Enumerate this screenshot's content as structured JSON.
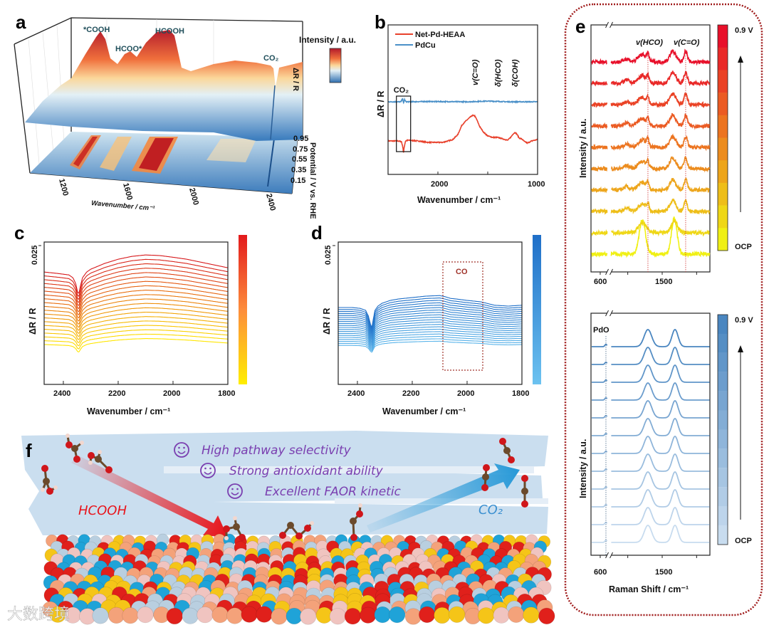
{
  "panel_labels": {
    "a": "a",
    "b": "b",
    "c": "c",
    "d": "d",
    "e": "e",
    "f": "f"
  },
  "panel_f": {
    "benefits": [
      "High pathway selectivity",
      "Strong antioxidant ability",
      "Excellent FAOR kinetic"
    ],
    "reactant_label": "HCOOH",
    "product_label": "CO₂",
    "icon": "smiley-icon",
    "atom_palette": [
      "#e0201b",
      "#b9cfe0",
      "#1fa3d8",
      "#f5c518",
      "#f4a27a",
      "#f0c4c0"
    ],
    "molecule_colors": {
      "C": "#6b4a2b",
      "O": "#d0161b",
      "H": "#f2d7cf"
    },
    "arrow_colors": {
      "reactant": "#e8141b",
      "product": "#2a9ad8"
    }
  },
  "watermark": "大数跨境",
  "chart_data": [
    {
      "panel": "a",
      "type": "surface",
      "colorbar_label": "Intensity / a.u.",
      "zlabel": "ΔR / R",
      "xlabel": "Wavenumber / cm⁻¹",
      "xticks": [
        1200,
        1600,
        2000,
        2400
      ],
      "ylabel": "Potential / V vs. RHE",
      "yticks": [
        "0.95",
        "0.75",
        "0.55",
        "0.35",
        "0.15"
      ],
      "annotations": [
        "*COOH",
        "HCOO*",
        "HCOOH",
        "CO₂"
      ],
      "colormap": [
        "#2e6fb0",
        "#e3f0f6",
        "#fbd79a",
        "#f0703c",
        "#b2182b"
      ]
    },
    {
      "panel": "b",
      "type": "line",
      "xlabel": "Wavenumber / cm⁻¹",
      "ylabel": "ΔR / R",
      "xlim": [
        2500,
        1000
      ],
      "ylim": [
        -2.35,
        8.15
      ],
      "xticks": [
        2000,
        1000
      ],
      "annotations": [
        {
          "text": "CO₂",
          "x": 2345
        },
        {
          "text": "v(C=O)",
          "x": 1630
        },
        {
          "text": "δ(HCO)",
          "x": 1400
        },
        {
          "text": "δ(COH)",
          "x": 1230
        }
      ],
      "series": [
        {
          "name": "Net-Pd-HEAA",
          "color": "#e8412c",
          "offset": 0,
          "x": [
            2500,
            2400,
            2365,
            2350,
            2345,
            2340,
            2325,
            2300,
            2200,
            2100,
            1950,
            1850,
            1800,
            1760,
            1720,
            1680,
            1650,
            1630,
            1610,
            1580,
            1540,
            1500,
            1450,
            1400,
            1350,
            1300,
            1270,
            1245,
            1225,
            1205,
            1185,
            1160,
            1130,
            1100,
            1060,
            1030,
            1000
          ],
          "y": [
            0,
            0,
            -0.05,
            -0.5,
            -0.9,
            -0.5,
            0,
            0.05,
            0,
            -0.1,
            -0.1,
            0.1,
            0.45,
            1.1,
            1.4,
            1.65,
            1.8,
            1.75,
            1.5,
            1.0,
            0.6,
            0.35,
            0.25,
            0.25,
            0.15,
            0.05,
            0.25,
            0.5,
            0.6,
            0.45,
            0.2,
            0.15,
            -0.05,
            -0.15,
            0,
            0.05,
            0.1
          ]
        },
        {
          "name": "PdCu",
          "color": "#4a90c8",
          "offset": 2.75,
          "x": [
            2500,
            2370,
            2355,
            2345,
            2335,
            2320,
            2100,
            1700,
            1500,
            1300,
            1000
          ],
          "y": [
            0,
            0,
            0.25,
            -0.1,
            0.15,
            0,
            0.02,
            0,
            0.05,
            0,
            0
          ]
        }
      ]
    },
    {
      "panel": "c",
      "type": "line",
      "xlabel": "Wavenumber / cm⁻¹",
      "ylabel": "ΔR / R",
      "scale_bar": "0.025",
      "xlim": [
        2470,
        1800
      ],
      "ylim": [
        0,
        0.05
      ],
      "xticks": [
        2400,
        2200,
        2000,
        1800
      ],
      "n_spectra": 20,
      "offset_start": 0.014,
      "offset_step": 0.00134,
      "color_low": "#ffe600",
      "color_high": "#d7191c",
      "shape_x": [
        2470,
        2420,
        2380,
        2365,
        2355,
        2348,
        2343,
        2338,
        2330,
        2315,
        2300,
        2250,
        2200,
        2150,
        2100,
        2050,
        2000,
        1950,
        1900,
        1850,
        1800
      ],
      "shape_y": [
        0,
        -0.0005,
        -0.001,
        -0.002,
        -0.004,
        -0.007,
        -0.0075,
        -0.005,
        -0.002,
        0,
        0.001,
        0.003,
        0.0045,
        0.0055,
        0.006,
        0.0058,
        0.0052,
        0.0045,
        0.0035,
        0.0025,
        0.0015
      ]
    },
    {
      "panel": "d",
      "type": "line",
      "xlabel": "Wavenumber / cm⁻¹",
      "ylabel": "ΔR / R",
      "scale_bar": "0.025",
      "xlim": [
        2470,
        1800
      ],
      "ylim": [
        0,
        0.05
      ],
      "xticks": [
        2400,
        2200,
        2000,
        1800
      ],
      "n_spectra": 20,
      "offset_start": 0.0137,
      "offset_step": 0.0007,
      "color_low": "#5ab4ea",
      "color_high": "#1f6fc8",
      "annotation": {
        "text": "CO",
        "x_range": [
          2090,
          1950
        ]
      },
      "shape_x": [
        2470,
        2420,
        2390,
        2370,
        2360,
        2352,
        2347,
        2342,
        2336,
        2325,
        2310,
        2280,
        2250,
        2200,
        2150,
        2100,
        2080,
        2060,
        2040,
        2000,
        1950,
        1900,
        1850,
        1800
      ],
      "shape_y": [
        0,
        0,
        -0.0003,
        -0.001,
        -0.003,
        -0.006,
        -0.007,
        -0.004,
        -0.001,
        0.0005,
        0.0015,
        0.0025,
        0.003,
        0.0035,
        0.004,
        0.0042,
        0.0038,
        0.0032,
        0.003,
        0.0025,
        0.002,
        0.0008,
        0.0005,
        0.0008
      ]
    },
    {
      "panel": "e-top",
      "type": "line",
      "xlabel": "",
      "ylabel": "Intensity / a.u.",
      "xlim": [
        466,
        2193
      ],
      "axis_break": [
        700,
        760
      ],
      "xticks": [
        600,
        1500
      ],
      "n_spectra": 10,
      "colorbar_top": "0.9 V",
      "colorbar_bottom": "OCP",
      "color_low": "#f0f014",
      "color_high": "#e8102a",
      "annotations": [
        {
          "text": "v(HCO)",
          "x": 1293
        },
        {
          "text": "v(C=O)",
          "x": 1841
        }
      ],
      "peaks_ocp": [
        [
          1211,
          45,
          1.6
        ],
        [
          1676,
          40,
          1.7
        ]
      ],
      "peaks_ocp2": [
        [
          1211,
          60,
          0.45
        ],
        [
          1676,
          45,
          0.55
        ]
      ],
      "peaks_potential": [
        [
          983,
          40,
          0.15
        ],
        [
          1211,
          60,
          0.35
        ],
        [
          1293,
          15,
          0.3
        ],
        [
          1655,
          45,
          0.5
        ],
        [
          1841,
          25,
          0.5
        ]
      ]
    },
    {
      "panel": "e-bottom",
      "type": "line",
      "xlabel": "Raman Shift / cm⁻¹",
      "ylabel": "Intensity / a.u.",
      "xlim": [
        466,
        2193
      ],
      "axis_break": [
        700,
        760
      ],
      "xticks": [
        600,
        1500
      ],
      "n_spectra": 12,
      "colorbar_top": "0.9 V",
      "colorbar_bottom": "OCP",
      "color_low": "#c8dcef",
      "color_high": "#4a86c0",
      "annotations": [
        {
          "text": "PdO",
          "x": 683
        }
      ],
      "peaks": [
        [
          683,
          15,
          0.08
        ],
        [
          1293,
          55,
          0.6
        ],
        [
          1686,
          45,
          0.6
        ]
      ]
    }
  ]
}
